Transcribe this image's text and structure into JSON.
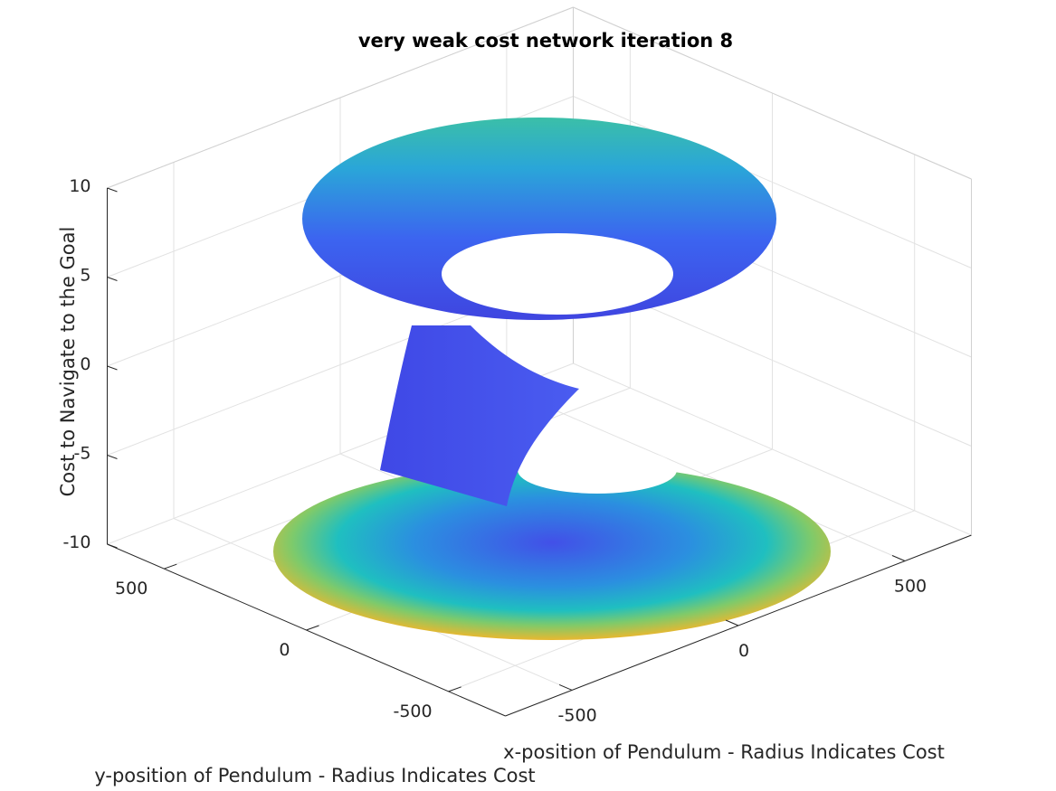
{
  "chart_data": {
    "type": "surface3d",
    "title": "very weak cost network iteration 8",
    "xlabel": "x-position of Pendulum - Radius Indicates Cost",
    "ylabel": "y-position of Pendulum - Radius Indicates Cost",
    "zlabel": "Cost to Navigate to the Goal",
    "xlim": [
      -700,
      700
    ],
    "ylim": [
      -700,
      700
    ],
    "zlim": [
      -10,
      10
    ],
    "xticks": [
      -500,
      0,
      500
    ],
    "yticks": [
      -500,
      0,
      500
    ],
    "zticks": [
      -10,
      -5,
      0,
      5,
      10
    ],
    "grid": true,
    "colormap": "parula",
    "colors": {
      "low": "#3e26a8",
      "mid": "#2db0c8",
      "high": "#f9c22e"
    }
  }
}
